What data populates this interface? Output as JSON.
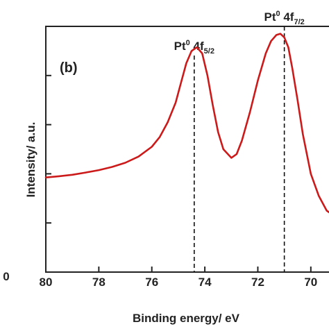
{
  "chart_data": {
    "type": "line",
    "panel_label": "(b)",
    "xlabel": "Binding energy/ eV",
    "ylabel": "Intensity/ a.u.",
    "x_reversed": true,
    "xlim": [
      80,
      69
    ],
    "ylim": [
      0,
      1
    ],
    "x_ticks": [
      80,
      78,
      76,
      74,
      72,
      70
    ],
    "x_tick_labels": [
      "80",
      "78",
      "76",
      "74",
      "72",
      "70"
    ],
    "left_cut_tick_label": "0",
    "y_ticks": [
      0.2,
      0.4,
      0.6,
      0.8,
      1.0
    ],
    "grid": false,
    "line_color": "#cc1a1a",
    "series": [
      {
        "x": [
          80.0,
          79.5,
          79.0,
          78.5,
          78.0,
          77.5,
          77.0,
          76.5,
          76.0,
          75.7,
          75.4,
          75.1,
          74.9,
          74.7,
          74.5,
          74.3,
          74.1,
          73.9,
          73.7,
          73.5,
          73.3,
          73.0,
          72.8,
          72.6,
          72.3,
          72.0,
          71.7,
          71.5,
          71.3,
          71.15,
          71.0,
          70.85,
          70.7,
          70.5,
          70.3,
          70.0,
          69.7,
          69.4,
          69.0
        ],
        "y": [
          0.385,
          0.39,
          0.396,
          0.405,
          0.415,
          0.428,
          0.445,
          0.47,
          0.51,
          0.55,
          0.61,
          0.69,
          0.77,
          0.85,
          0.9,
          0.915,
          0.89,
          0.8,
          0.68,
          0.57,
          0.5,
          0.465,
          0.48,
          0.535,
          0.65,
          0.78,
          0.89,
          0.94,
          0.965,
          0.97,
          0.955,
          0.915,
          0.83,
          0.7,
          0.56,
          0.4,
          0.31,
          0.25,
          0.22
        ]
      }
    ],
    "annotations": [
      {
        "text_main": "Pt",
        "text_sup": "0",
        "text_mid": " 4f",
        "text_sub": "5/2",
        "x": 74.4
      },
      {
        "text_main": "Pt",
        "text_sup": "0",
        "text_mid": " 4f",
        "text_sub": "7/2",
        "x": 71.0
      }
    ]
  }
}
